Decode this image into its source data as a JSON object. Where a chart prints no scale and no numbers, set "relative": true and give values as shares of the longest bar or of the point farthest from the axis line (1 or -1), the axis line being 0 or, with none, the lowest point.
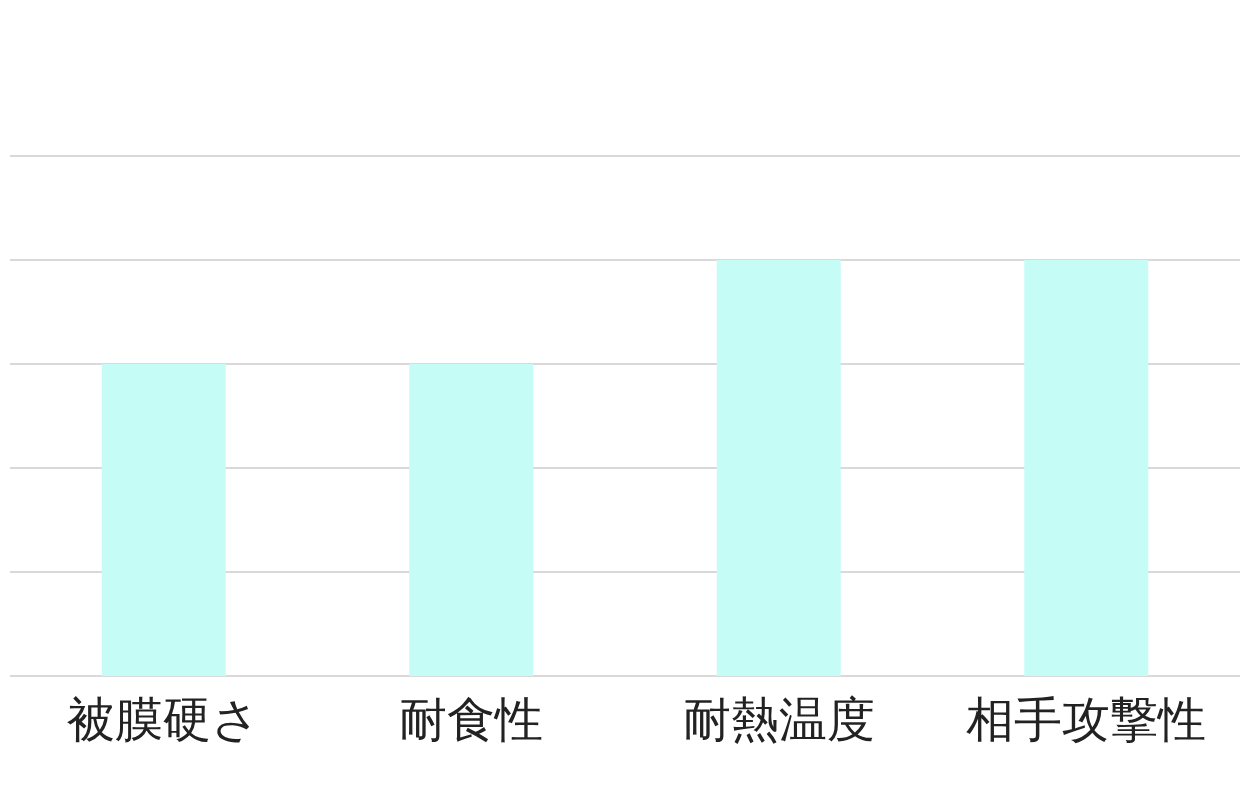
{
  "chart_data": {
    "type": "bar",
    "relative": true,
    "grid": "y",
    "categories": [
      "被膜硬さ",
      "耐食性",
      "耐熱温度",
      "相手攻撃性"
    ],
    "values": [
      0.75,
      0.75,
      1,
      1
    ],
    "color": "#c6fcf6"
  }
}
